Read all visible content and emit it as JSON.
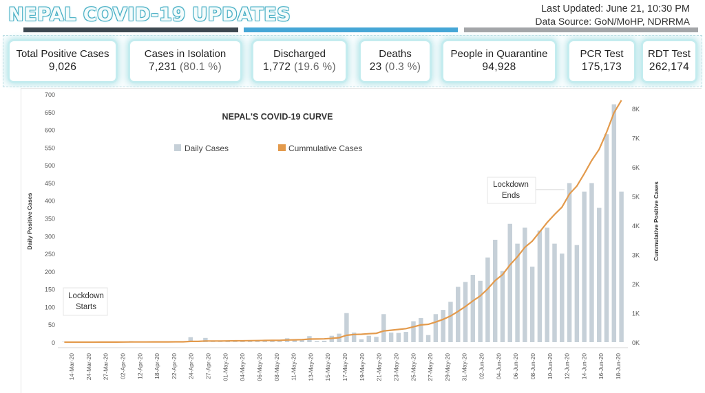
{
  "header": {
    "title": "NEPAL COVID-19 UPDATES",
    "last_updated": "Last Updated: June 21,  10:30 PM",
    "data_source": "Data Source: GoN/MoHP, NDRRMA",
    "stripe_colors": [
      "#3d4850",
      "#45a6d6",
      "#a3a5a8"
    ]
  },
  "cards": [
    {
      "label": "Total Positive Cases",
      "value": "9,026",
      "pct": ""
    },
    {
      "label": "Cases in Isolation",
      "value": "7,231",
      "pct": "(80.1 %)"
    },
    {
      "label": "Discharged",
      "value": "1,772",
      "pct": "(19.6 %)"
    },
    {
      "label": "Deaths",
      "value": "23",
      "pct": "(0.3 %)"
    },
    {
      "label": "People in Quarantine",
      "value": "94,928",
      "pct": ""
    },
    {
      "label": "PCR Test",
      "value": "175,173",
      "pct": ""
    },
    {
      "label": "RDT Test",
      "value": "262,174",
      "pct": ""
    }
  ],
  "chart_data": {
    "type": "bar",
    "title": "NEPAL'S COVID-19 CURVE",
    "ylabel": "Daily Positive Cases",
    "y2label": "Cummulative Positive Cases",
    "ylim": [
      0,
      700
    ],
    "y2lim": [
      0,
      8500
    ],
    "yticks": [
      0,
      50,
      100,
      150,
      200,
      250,
      300,
      350,
      400,
      450,
      500,
      550,
      600,
      650,
      700
    ],
    "y2ticks": [
      0,
      1000,
      2000,
      3000,
      4000,
      5000,
      6000,
      7000,
      8000
    ],
    "y2ticklabels": [
      "0K",
      "1K",
      "2K",
      "3K",
      "4K",
      "5K",
      "6K",
      "7K",
      "8K"
    ],
    "legend": [
      {
        "name": "Daily Cases",
        "color": "#c6d0d8"
      },
      {
        "name": "Cummulative Cases",
        "color": "#e39a4c"
      }
    ],
    "annotations": [
      {
        "text": [
          "Lockdown",
          "Starts"
        ],
        "category": "24-Mar-20"
      },
      {
        "text": [
          "Lockdown",
          "Ends"
        ],
        "category": "14-Jun-20"
      }
    ],
    "tick_labels": [
      "14-Mar-20",
      "24-Mar-20",
      "27-Mar-20",
      "02-Apr-20",
      "12-Apr-20",
      "18-Apr-20",
      "22-Apr-20",
      "24-Apr-20",
      "27-Apr-20",
      "01-May-20",
      "04-May-20",
      "06-May-20",
      "08-May-20",
      "11-May-20",
      "13-May-20",
      "15-May-20",
      "17-May-20",
      "19-May-20",
      "21-May-20",
      "23-May-20",
      "25-May-20",
      "27-May-20",
      "29-May-20",
      "31-May-20",
      "02-Jun-20",
      "04-Jun-20",
      "06-Jun-20",
      "08-Jun-20",
      "10-Jun-20",
      "12-Jun-20",
      "14-Jun-20",
      "16-Jun-20",
      "18-Jun-20"
    ],
    "daily": [
      1,
      0,
      0,
      0,
      0,
      1,
      1,
      0,
      1,
      3,
      0,
      1,
      1,
      1,
      0,
      1,
      1,
      14,
      1,
      12,
      1,
      1,
      2,
      3,
      2,
      3,
      4,
      3,
      3,
      3,
      11,
      5,
      8,
      17,
      3,
      4,
      18,
      24,
      82,
      27,
      8,
      18,
      15,
      79,
      27,
      26,
      29,
      59,
      68,
      20,
      79,
      91,
      114,
      156,
      170,
      190,
      173,
      239,
      289,
      201,
      334,
      278,
      323,
      213,
      315,
      323,
      278,
      250,
      449,
      274,
      425,
      449,
      379,
      587,
      671,
      425
    ],
    "cumulative": [
      1,
      1,
      1,
      1,
      1,
      2,
      3,
      3,
      4,
      7,
      7,
      8,
      9,
      10,
      10,
      11,
      12,
      26,
      27,
      39,
      40,
      41,
      43,
      46,
      48,
      51,
      55,
      58,
      61,
      64,
      75,
      80,
      88,
      105,
      108,
      112,
      130,
      154,
      236,
      263,
      271,
      289,
      304,
      383,
      410,
      436,
      465,
      524,
      592,
      612,
      691,
      782,
      896,
      1052,
      1222,
      1412,
      1585,
      1824,
      2113,
      2314,
      2648,
      2926,
      3249,
      3462,
      3777,
      4100,
      4378,
      4628,
      5077,
      5351,
      5776,
      6225,
      6604,
      7191,
      7862,
      8287
    ]
  }
}
